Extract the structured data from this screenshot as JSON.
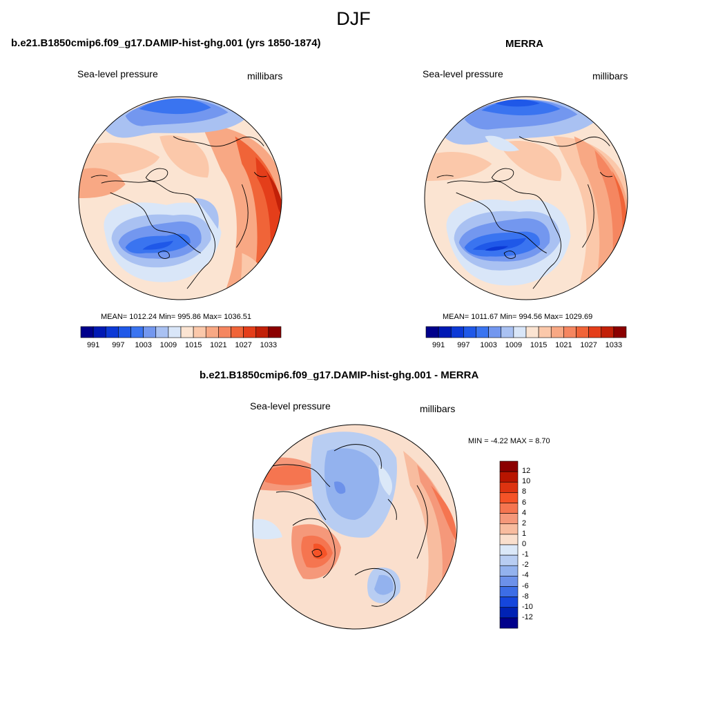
{
  "figure": {
    "season": "DJF"
  },
  "panels": {
    "model": {
      "title": "b.e21.B1850cmip6.f09_g17.DAMIP-hist-ghg.001 (yrs 1850-1874)",
      "field": "Sea-level pressure",
      "units": "millibars",
      "stats": "MEAN= 1012.24  Min= 995.86  Max= 1036.51"
    },
    "obs": {
      "title": "MERRA",
      "field": "Sea-level pressure",
      "units": "millibars",
      "stats": "MEAN= 1011.67  Min= 994.56  Max= 1029.69"
    },
    "diff": {
      "title": "b.e21.B1850cmip6.f09_g17.DAMIP-hist-ghg.001 - MERRA",
      "field": "Sea-level pressure",
      "units": "millibars",
      "stats": "MIN =  -4.22 MAX =   8.70"
    }
  },
  "colorbars": {
    "slp": {
      "colors": [
        "#00008b",
        "#0019b4",
        "#0c39d6",
        "#1f58e8",
        "#3a74f0",
        "#7397ef",
        "#a9c1f2",
        "#d9e6f8",
        "#fbe4d2",
        "#fbc8aa",
        "#f8a884",
        "#f58660",
        "#f06438",
        "#e43e1a",
        "#c22008",
        "#8b0000"
      ],
      "labels": [
        "991",
        "997",
        "1003",
        "1009",
        "1015",
        "1021",
        "1027",
        "1033"
      ]
    },
    "diff": {
      "colors": [
        "#8b0000",
        "#b81500",
        "#dd3310",
        "#f55327",
        "#f57550",
        "#f5987a",
        "#f8bc9f",
        "#fadfcd",
        "#dbe8f8",
        "#b8cdf2",
        "#93b2ee",
        "#6c91ea",
        "#3c6de6",
        "#1546dc",
        "#0022b4",
        "#00008b"
      ],
      "labels": [
        "12",
        "10",
        "8",
        "6",
        "4",
        "2",
        "1",
        "0",
        "-1",
        "-2",
        "-4",
        "-6",
        "-8",
        "-10",
        "-12"
      ]
    }
  }
}
